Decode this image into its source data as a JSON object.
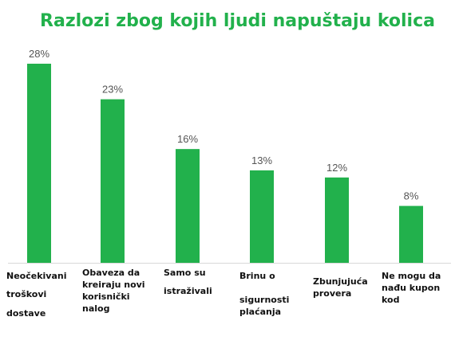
{
  "chart_data": {
    "type": "bar",
    "title": "Razlozi zbog kojih ljudi napuštaju kolica",
    "xlabel": "",
    "ylabel": "",
    "ylim": [
      0,
      30
    ],
    "grid": false,
    "legend": "none",
    "bar_color": "#22b14c",
    "title_color": "#22b14c",
    "categories": [
      [
        "Neočekivani",
        "troškovi",
        "dostave"
      ],
      [
        "Obaveza da",
        "kreiraju novi",
        "korisnički",
        "nalog"
      ],
      [
        "Samo su",
        "istraživali"
      ],
      [
        "Brinu o",
        "sigurnosti",
        "plaćanja"
      ],
      [
        "Zbunjujuća",
        "provera"
      ],
      [
        "Ne mogu da",
        "nađu kupon",
        "kod"
      ]
    ],
    "values": [
      28,
      23,
      16,
      13,
      12,
      8
    ],
    "value_labels": [
      "28%",
      "23%",
      "16%",
      "13%",
      "12%",
      "8%"
    ]
  }
}
